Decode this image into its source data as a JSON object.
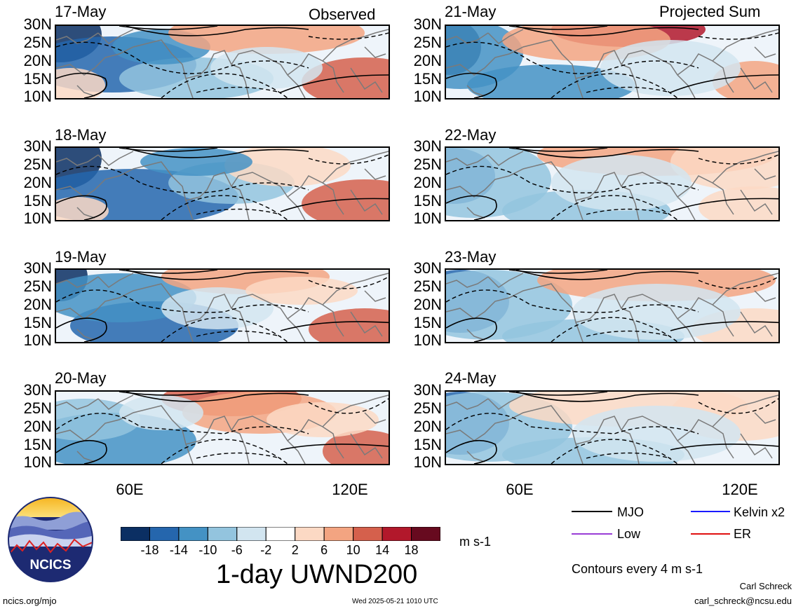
{
  "columns": {
    "left_title": "Observed",
    "right_title": "Projected Sum"
  },
  "panels": [
    {
      "date": "17-May",
      "column": "observed"
    },
    {
      "date": "18-May",
      "column": "observed"
    },
    {
      "date": "19-May",
      "column": "observed"
    },
    {
      "date": "20-May",
      "column": "observed"
    },
    {
      "date": "21-May",
      "column": "projected"
    },
    {
      "date": "22-May",
      "column": "projected"
    },
    {
      "date": "23-May",
      "column": "projected"
    },
    {
      "date": "24-May",
      "column": "projected"
    }
  ],
  "latitude_ticks": [
    "30N",
    "25N",
    "20N",
    "15N",
    "10N"
  ],
  "longitude_ticks": [
    "60E",
    "120E"
  ],
  "colorbar": {
    "labels": [
      "-18",
      "-14",
      "-10",
      "-6",
      "-2",
      "2",
      "6",
      "10",
      "14",
      "18"
    ],
    "colors": [
      "#0b2f63",
      "#2566ad",
      "#4492c4",
      "#93c4de",
      "#d2e5f0",
      "#ffffff",
      "#fcd9c4",
      "#f3a481",
      "#d5604c",
      "#b2182b",
      "#670a1f"
    ],
    "units": "m s-1"
  },
  "title": "1-day UWND200",
  "legend": {
    "items": [
      {
        "label": "MJO",
        "color": "#000000"
      },
      {
        "label": "Kelvin x2",
        "color": "#1a1aff"
      },
      {
        "label": "Low",
        "color": "#9a3dd6"
      },
      {
        "label": "ER",
        "color": "#e01010"
      }
    ],
    "contours_note": "Contours every 4 m s-1"
  },
  "logo": {
    "text": "NCICS"
  },
  "footer": {
    "url": "ncics.org/mjo",
    "timestamp": "Wed 2025-05-21 1010 UTC",
    "author": "Carl Schreck",
    "email": "carl_schreck@ncsu.edu"
  }
}
